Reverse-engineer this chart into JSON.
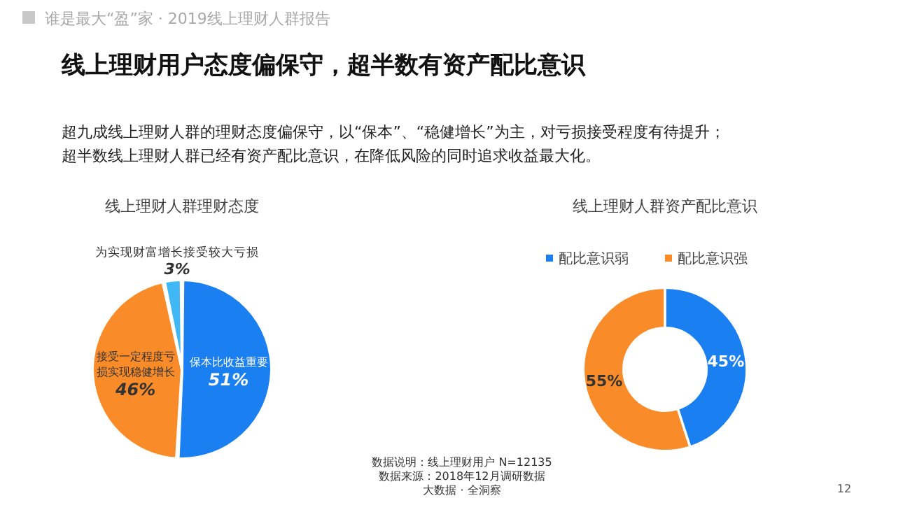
{
  "chart_data": [
    {
      "type": "other",
      "title": "线上理财用户态度偏保守，超半数有资产配比意识",
      "subtitle": "谁是最大“盈”家 · 2019线上理财人群报告",
      "annotations": [
        "超九成线上理财人群的理财态度偏保守，以“保本”、“稳健增长”为主，对亏损接受程度有待提升；",
        "超半数线上理财人群已经有资产配比意识，在降低风险的同时追求收益最大化。",
        "数据说明：线上理财用户 N=12135",
        "数据来源：2018年12月调研数据",
        "大数据 · 全洞察",
        "12"
      ]
    },
    {
      "type": "pie",
      "title": "线上理财人群理财态度",
      "categories": [
        "保本比收益重要",
        "接受一定程度亏损实现稳健增长",
        "为实现财富增长接受较大亏损"
      ],
      "values": [
        51,
        46,
        3
      ],
      "colors": [
        "#1a7ff0",
        "#f98b28",
        "#3fb8f5"
      ],
      "value_labels": [
        "51%",
        "46%",
        "3%"
      ],
      "legend": false
    },
    {
      "type": "donut",
      "title": "线上理财人群资产配比意识",
      "categories": [
        "配比意识弱",
        "配比意识强"
      ],
      "values": [
        45,
        55
      ],
      "colors": [
        "#1a7ff0",
        "#f98b28"
      ],
      "value_labels": [
        "45%",
        "55%"
      ],
      "legend": "top"
    }
  ]
}
